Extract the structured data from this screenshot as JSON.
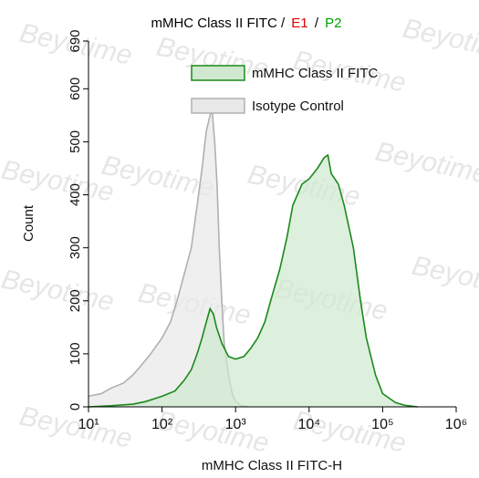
{
  "chart_data": {
    "type": "area",
    "title_parts": [
      {
        "text": "mMHC Class II FITC /",
        "color": "#000000"
      },
      {
        "text": "E1",
        "color": "#e00000"
      },
      {
        "text": "/",
        "color": "#000000"
      },
      {
        "text": "P2",
        "color": "#00a000"
      }
    ],
    "x_label": "mMHC Class II FITC-H",
    "y_label": "Count",
    "watermark": "Beyotime",
    "xscale": "log",
    "xlim": [
      10,
      1000000
    ],
    "xticks": [
      {
        "value": 10,
        "label": "10¹"
      },
      {
        "value": 100,
        "label": "10²"
      },
      {
        "value": 1000,
        "label": "10³"
      },
      {
        "value": 10000,
        "label": "10⁴"
      },
      {
        "value": 100000,
        "label": "10⁵"
      },
      {
        "value": 1000000,
        "label": "10⁶"
      }
    ],
    "ylim": [
      0,
      690
    ],
    "yticks": [
      0,
      100,
      200,
      300,
      400,
      500,
      600,
      690
    ],
    "series": [
      {
        "name": "Isotype Control",
        "color": "#b0b0b0",
        "fill": "#e8e8e8",
        "x": [
          10,
          15,
          20,
          30,
          40,
          50,
          70,
          100,
          130,
          160,
          200,
          250,
          300,
          350,
          400,
          450,
          480,
          520,
          560,
          600,
          650,
          700,
          800,
          900,
          1000,
          1200,
          1500
        ],
        "values": [
          20,
          25,
          35,
          45,
          60,
          75,
          100,
          130,
          160,
          200,
          250,
          300,
          380,
          450,
          520,
          550,
          560,
          500,
          420,
          300,
          200,
          120,
          60,
          25,
          10,
          2,
          0
        ]
      },
      {
        "name": "mMHC Class II FITC",
        "color": "#1a8a1a",
        "fill": "#cfe8cf",
        "x": [
          10,
          20,
          40,
          60,
          100,
          150,
          200,
          250,
          300,
          350,
          400,
          450,
          500,
          550,
          650,
          800,
          1000,
          1300,
          1600,
          2000,
          2500,
          3000,
          4000,
          5000,
          6000,
          8000,
          10000,
          13000,
          16000,
          18000,
          20000,
          25000,
          30000,
          40000,
          50000,
          60000,
          80000,
          100000,
          150000,
          200000,
          300000
        ],
        "values": [
          0,
          2,
          5,
          10,
          20,
          30,
          50,
          70,
          100,
          130,
          160,
          185,
          175,
          150,
          120,
          95,
          90,
          95,
          110,
          130,
          160,
          200,
          260,
          320,
          380,
          420,
          430,
          450,
          470,
          475,
          440,
          420,
          380,
          300,
          200,
          130,
          60,
          25,
          8,
          3,
          0
        ]
      }
    ]
  }
}
